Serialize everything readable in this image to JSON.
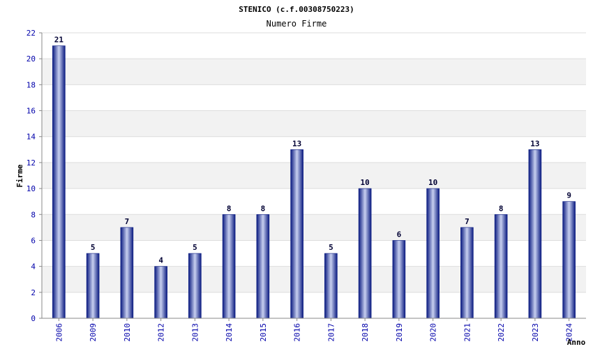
{
  "chart_data": {
    "type": "bar",
    "title": "STENICO (c.f.00308750223)",
    "subtitle": "Numero Firme",
    "xlabel": "Anno",
    "ylabel": "Firme",
    "categories": [
      "2006",
      "2009",
      "2010",
      "2012",
      "2013",
      "2014",
      "2015",
      "2016",
      "2017",
      "2018",
      "2019",
      "2020",
      "2021",
      "2022",
      "2023",
      "2024"
    ],
    "values": [
      21,
      5,
      7,
      4,
      5,
      8,
      8,
      13,
      5,
      10,
      6,
      10,
      7,
      8,
      13,
      9
    ],
    "ylim": [
      0,
      22
    ],
    "yticks": [
      0,
      2,
      4,
      6,
      8,
      10,
      12,
      14,
      16,
      18,
      20,
      22
    ],
    "grid": true,
    "colors": {
      "bar_dark": "#0a1a80",
      "bar_light": "#c8d0f0",
      "tick_text": "#0000aa",
      "band": "#f2f2f2"
    }
  }
}
